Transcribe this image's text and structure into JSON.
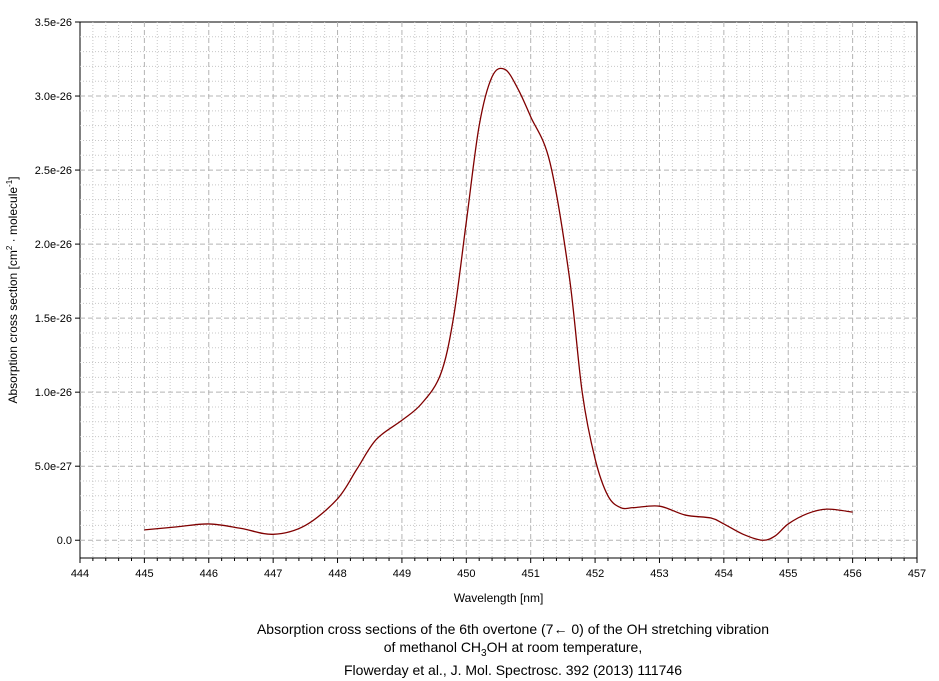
{
  "chart_data": {
    "type": "line",
    "xlabel": "Wavelength [nm]",
    "ylabel": {
      "pre": "Absorption cross section [cm",
      "sup1": "2",
      "mid": " · molecule",
      "sup2": "-1",
      "post": "]"
    },
    "xlim": [
      444,
      457
    ],
    "ylim": [
      -1.2e-27,
      3.5e-26
    ],
    "xticks": [
      444,
      445,
      446,
      447,
      448,
      449,
      450,
      451,
      452,
      453,
      454,
      455,
      456,
      457
    ],
    "xtick_labels": [
      "444",
      "445",
      "446",
      "447",
      "448",
      "449",
      "450",
      "451",
      "452",
      "453",
      "454",
      "455",
      "456",
      "457"
    ],
    "yticks": [
      0,
      5e-27,
      1e-26,
      1.5e-26,
      2e-26,
      2.5e-26,
      3e-26,
      3.5e-26
    ],
    "ytick_labels": [
      "0.0",
      "5.0e-27",
      "1.0e-26",
      "1.5e-26",
      "2.0e-26",
      "2.5e-26",
      "3.0e-26",
      "3.5e-26"
    ],
    "grid": true,
    "line_color": "#800000",
    "series": [
      {
        "x": [
          445.0,
          445.5,
          446.0,
          446.5,
          447.0,
          447.5,
          448.0,
          448.3,
          448.6,
          449.0,
          449.3,
          449.6,
          449.8,
          450.0,
          450.2,
          450.4,
          450.6,
          450.8,
          451.0,
          451.3,
          451.6,
          451.8,
          452.0,
          452.2,
          452.4,
          452.6,
          453.0,
          453.4,
          453.8,
          454.0,
          454.3,
          454.6,
          454.8,
          455.0,
          455.3,
          455.6,
          456.0
        ],
        "y": [
          7e-28,
          9e-28,
          1.1e-27,
          8e-28,
          4e-28,
          1e-27,
          2.8e-27,
          4.8e-27,
          6.8e-27,
          8.1e-27,
          9.2e-27,
          1.12e-26,
          1.5e-26,
          2.15e-26,
          2.8e-26,
          3.13e-26,
          3.18e-26,
          3.05e-26,
          2.86e-26,
          2.55e-26,
          1.78e-26,
          1e-26,
          5.5e-27,
          3e-27,
          2.2e-27,
          2.2e-27,
          2.3e-27,
          1.7e-27,
          1.5e-27,
          1.1e-27,
          4e-28,
          0,
          3e-28,
          1.1e-27,
          1.8e-27,
          2.1e-27,
          1.9e-27
        ]
      }
    ],
    "caption": {
      "line1": "Absorption cross sections of the 6th overtone (7← 0) of the OH stretching vibration",
      "line2_pre": "of methanol CH",
      "line2_sub": "3",
      "line2_post": "OH at room temperature,",
      "line3": "Flowerday et al., J. Mol. Spectrosc. 392 (2013) 111746"
    }
  }
}
